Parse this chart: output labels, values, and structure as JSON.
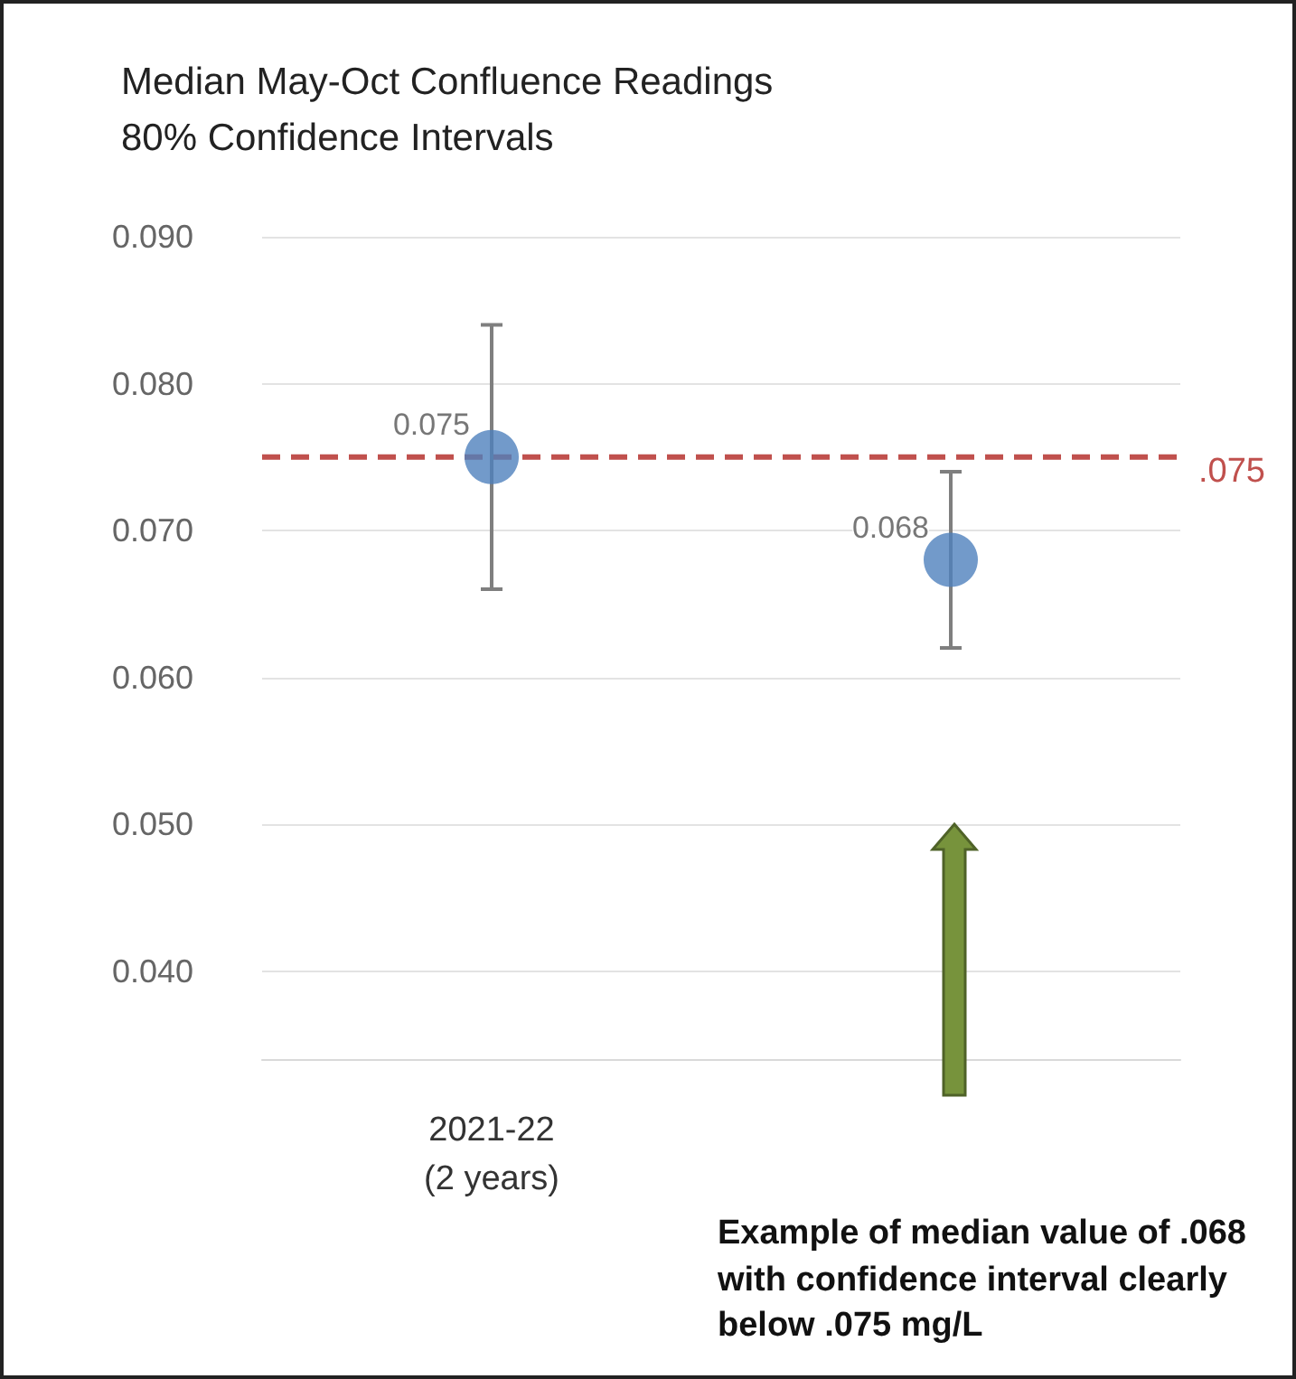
{
  "chart_data": {
    "type": "scatter",
    "title": "Median May-Oct Confluence Readings",
    "subtitle": "80% Confidence Intervals",
    "categories": [
      "2021-22\n(2 years)",
      null
    ],
    "series": [
      {
        "color": "#4f81bd",
        "values": [
          0.075,
          0.068
        ],
        "errors": [
          [
            0.066,
            0.084
          ],
          [
            0.062,
            0.074
          ]
        ]
      }
    ],
    "data_labels": true,
    "marker": "circle",
    "grid": "y",
    "ylim": [
      0.034,
      0.09
    ],
    "yticks": [
      {
        "value": 0.04,
        "label": "0.040"
      },
      {
        "value": 0.05,
        "label": "0.050"
      },
      {
        "value": 0.06,
        "label": "0.060"
      },
      {
        "value": 0.07,
        "label": "0.070"
      },
      {
        "value": 0.08,
        "label": "0.080"
      },
      {
        "value": 0.09,
        "label": "0.090"
      }
    ],
    "ref_lines": [
      {
        "axis": "y",
        "value": 0.075,
        "label": ".075",
        "color": "#c0504d",
        "line_style": "dashed"
      }
    ],
    "annotations": [
      "Example of median value of .068 with confidence interval clearly below .075 mg/L"
    ]
  }
}
